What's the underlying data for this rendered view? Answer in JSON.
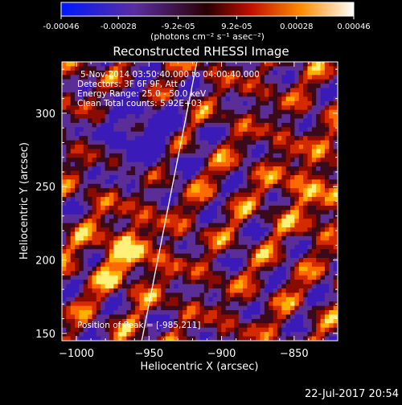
{
  "chart_data": {
    "type": "heatmap",
    "title": "Reconstructed RHESSI Image",
    "xlabel": "Heliocentric X (arcsec)",
    "ylabel": "Heliocentric Y (arcsec)",
    "xlim": [
      -1010,
      -820
    ],
    "ylim": [
      145,
      335
    ],
    "x_ticks": [
      -1000,
      -950,
      -900,
      -850
    ],
    "y_ticks": [
      150,
      200,
      250,
      300
    ],
    "colorbar": {
      "ticks": [
        "-0.00046",
        "-0.00028",
        "-9.2e-05",
        "9.2e-05",
        "0.00028",
        "0.00046"
      ],
      "units_label": "(photons cm⁻² s⁻¹ asec⁻²)",
      "min": -0.00046,
      "max": 0.00046
    },
    "annotations": [
      "5-Nov-2014 03:50:40.000 to 04:00:40.000",
      "Detectors: 3F 6F 9F, Att 0",
      "Energy Range: 25.0 - 50.0 keV",
      "Clean   Total counts: 5.92E+03"
    ],
    "peak_label": "Position of Peak = [-985,211]",
    "limb_line": [
      [
        -955,
        145
      ],
      [
        -917,
        335
      ]
    ],
    "grid": false
  },
  "footer": {
    "date": "22-Jul-2017 20:54"
  }
}
